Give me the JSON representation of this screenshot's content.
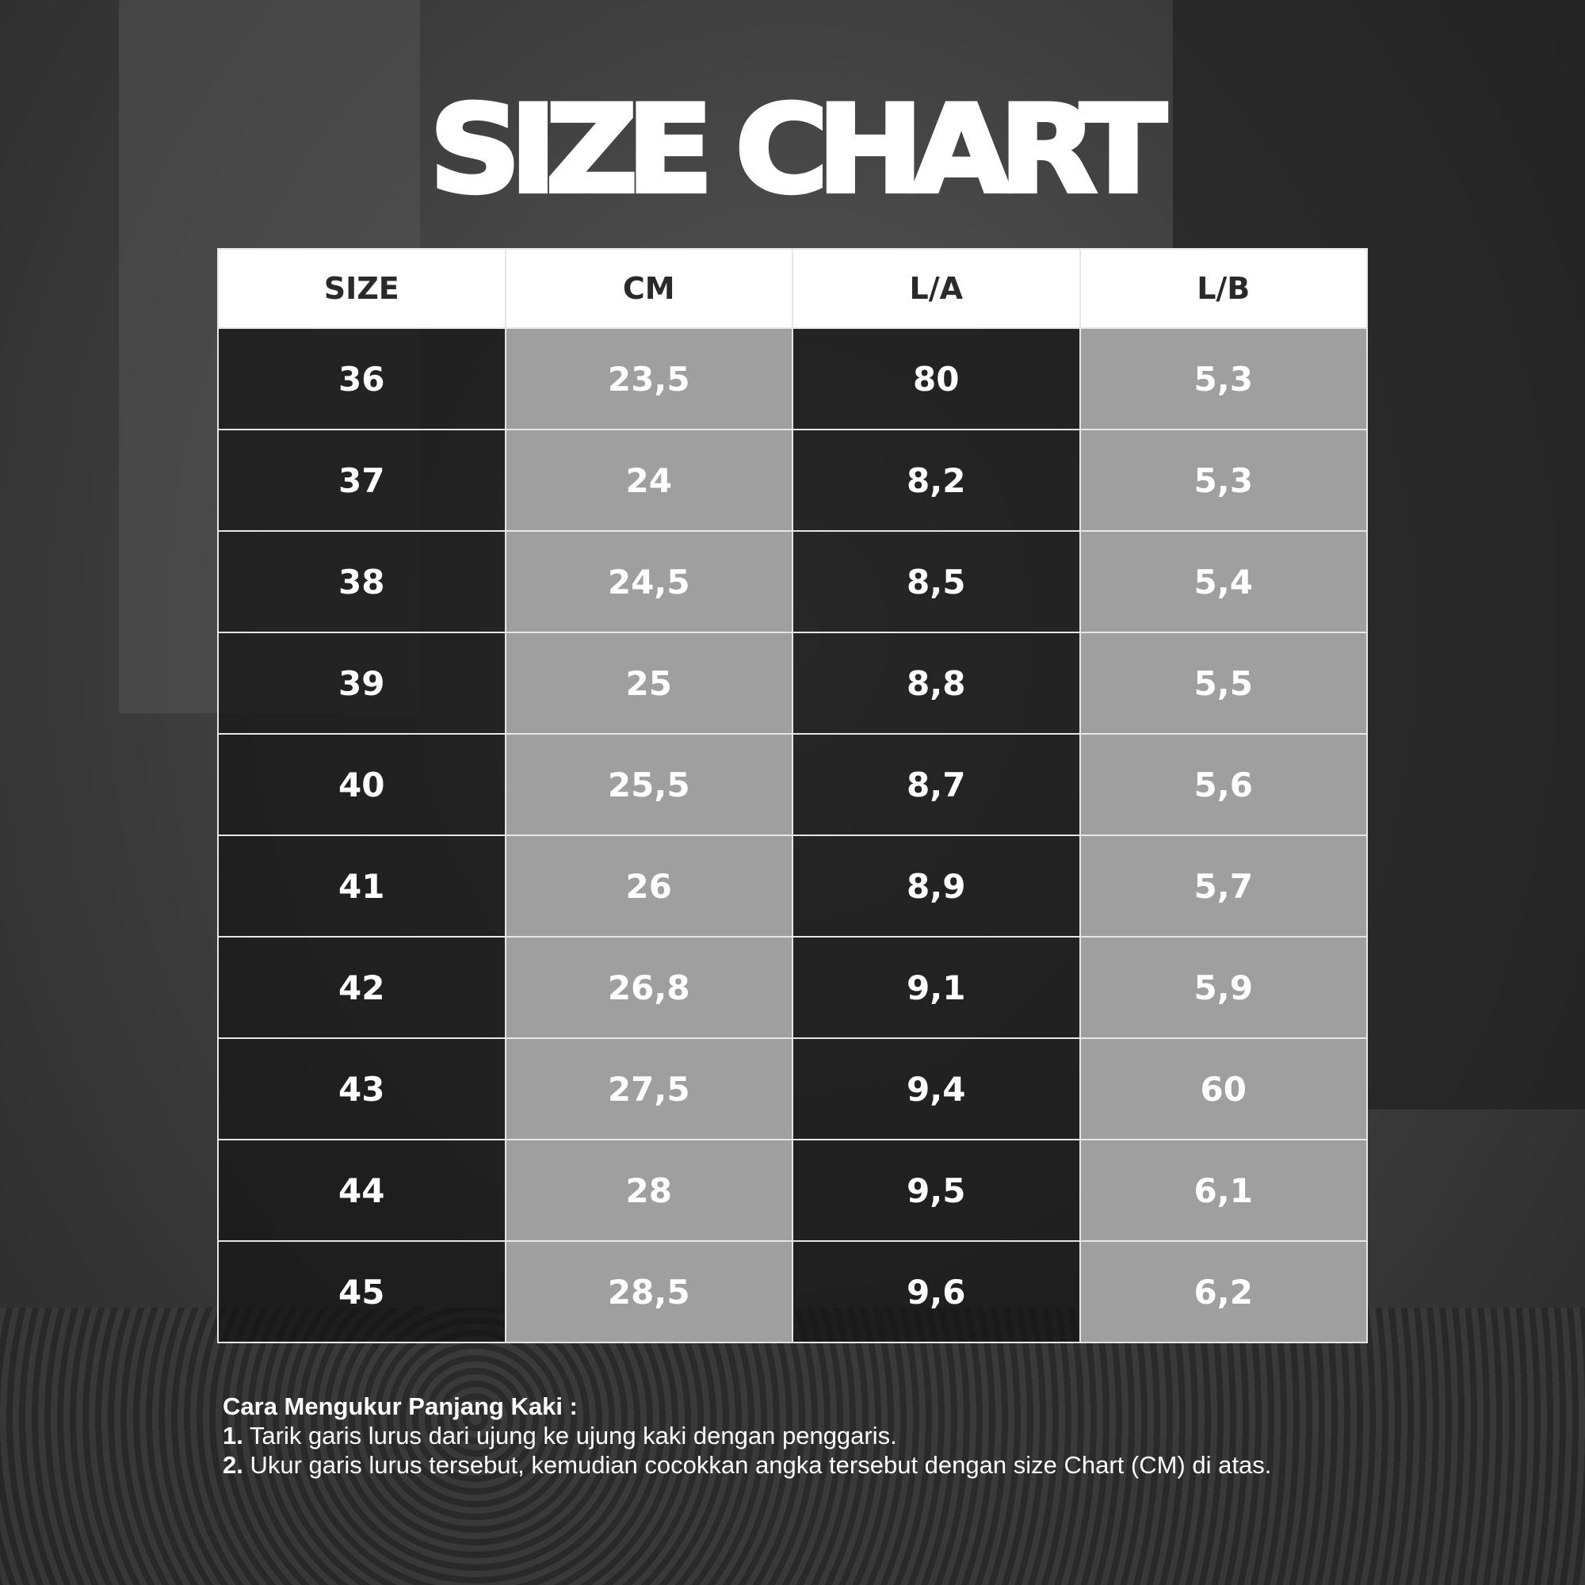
{
  "title": "SIZE CHART",
  "table": {
    "headers": [
      "SIZE",
      "CM",
      "L/A",
      "L/B"
    ],
    "rows": [
      [
        "36",
        "23,5",
        "80",
        "5,3"
      ],
      [
        "37",
        "24",
        "8,2",
        "5,3"
      ],
      [
        "38",
        "24,5",
        "8,5",
        "5,4"
      ],
      [
        "39",
        "25",
        "8,8",
        "5,5"
      ],
      [
        "40",
        "25,5",
        "8,7",
        "5,6"
      ],
      [
        "41",
        "26",
        "8,9",
        "5,7"
      ],
      [
        "42",
        "26,8",
        "9,1",
        "5,9"
      ],
      [
        "43",
        "27,5",
        "9,4",
        "60"
      ],
      [
        "44",
        "28",
        "9,5",
        "6,1"
      ],
      [
        "45",
        "28,5",
        "9,6",
        "6,2"
      ]
    ]
  },
  "notes": {
    "heading": "Cara Mengukur Panjang Kaki :",
    "steps": [
      {
        "num": "1.",
        "text": " Tarik garis lurus dari ujung ke ujung kaki dengan penggaris."
      },
      {
        "num": "2.",
        "text": " Ukur garis lurus tersebut, kemudian cocokkan angka tersebut dengan size Chart (CM) di atas."
      }
    ]
  }
}
